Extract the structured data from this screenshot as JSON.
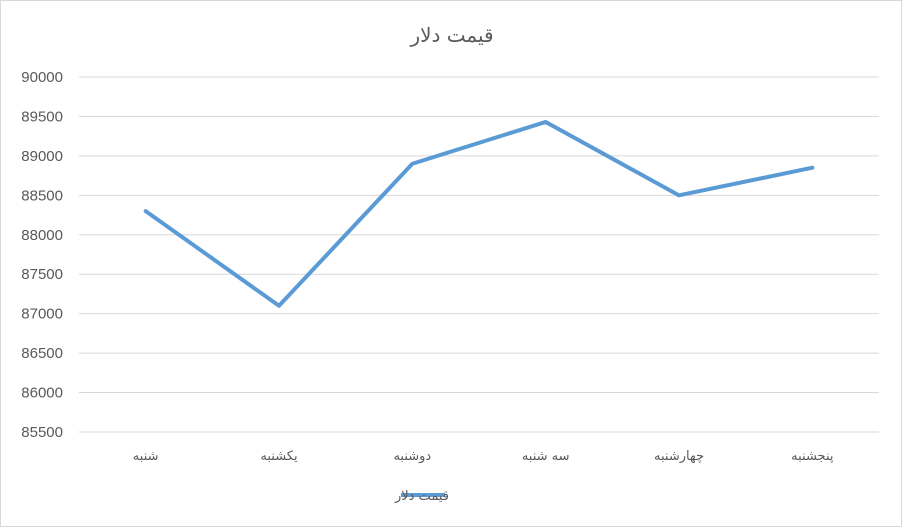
{
  "chart_data": {
    "type": "line",
    "title": "قیمت دلار",
    "categories": [
      "شنبه",
      "یکشنبه",
      "دوشنبه",
      "سه شنبه",
      "چهارشنبه",
      "پنجشنبه"
    ],
    "series": [
      {
        "name": "قیمت دلار",
        "values": [
          88300,
          87100,
          88900,
          89430,
          88500,
          88850
        ],
        "color": "#5b9bd5"
      }
    ],
    "ylim": [
      85500,
      90000
    ],
    "ytick_step": 500,
    "grid": true,
    "legend": "bottom"
  }
}
